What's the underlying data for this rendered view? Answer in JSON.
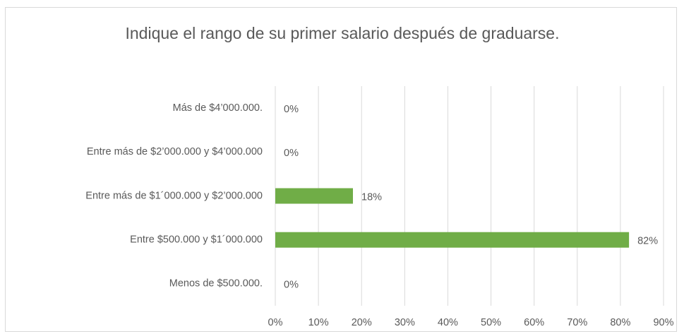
{
  "chart_data": {
    "type": "hbar",
    "title": "Indique el rango de su primer salario después de graduarse.",
    "categories": [
      "Más de $4’000.000.",
      "Entre más de $2’000.000 y $4’000.000",
      "Entre más de $1´000.000 y $2’000.000",
      "Entre $500.000 y $1´000.000",
      "Menos de $500.000."
    ],
    "values": [
      0,
      0,
      18,
      82,
      0
    ],
    "value_labels": [
      "0%",
      "0%",
      "18%",
      "82%",
      "0%"
    ],
    "color": "#70ad47",
    "xlim": [
      0,
      90
    ],
    "xticks": [
      {
        "value": 0,
        "label": "0%"
      },
      {
        "value": 10,
        "label": "10%"
      },
      {
        "value": 20,
        "label": "20%"
      },
      {
        "value": 30,
        "label": "30%"
      },
      {
        "value": 40,
        "label": "40%"
      },
      {
        "value": 50,
        "label": "50%"
      },
      {
        "value": 60,
        "label": "60%"
      },
      {
        "value": 70,
        "label": "70%"
      },
      {
        "value": 80,
        "label": "80%"
      },
      {
        "value": 90,
        "label": "90%"
      }
    ],
    "grid": true
  }
}
